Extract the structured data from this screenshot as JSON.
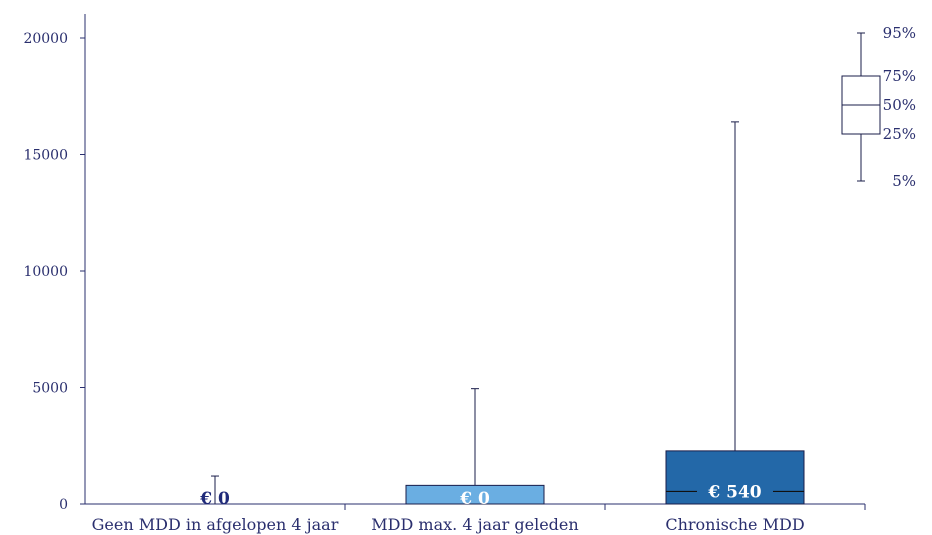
{
  "chart_data": {
    "type": "box",
    "yticks": [
      0,
      5000,
      10000,
      15000,
      20000
    ],
    "ylim": [
      0,
      20000
    ],
    "categories": [
      "Geen MDD in afgelopen 4 jaar",
      "MDD max. 4 jaar geleden",
      "Chronische MDD"
    ],
    "boxes": [
      {
        "category": "Geen MDD in afgelopen 4 jaar",
        "p5": 0,
        "p25": 0,
        "p50": 0,
        "p75": 0,
        "p95": 1200,
        "median_label": "€ 0",
        "fill": "#ffffff"
      },
      {
        "category": "MDD max. 4 jaar geleden",
        "p5": 0,
        "p25": 0,
        "p50": 0,
        "p75": 800,
        "p95": 4950,
        "median_label": "€ 0",
        "fill": "#6aaee2"
      },
      {
        "category": "Chronische MDD",
        "p5": 0,
        "p25": 0,
        "p50": 540,
        "p75": 2280,
        "p95": 16400,
        "median_label": "€ 540",
        "fill": "#2368a8"
      }
    ],
    "legend": {
      "placement": "top-right",
      "labels": [
        "95%",
        "75%",
        "50%",
        "25%",
        "5%"
      ]
    },
    "colors": {
      "axis": "#2a2f6e",
      "box_stroke": "#1a1d4a",
      "label_dark": "#1f2a7a",
      "label_light": "#ffffff"
    }
  }
}
